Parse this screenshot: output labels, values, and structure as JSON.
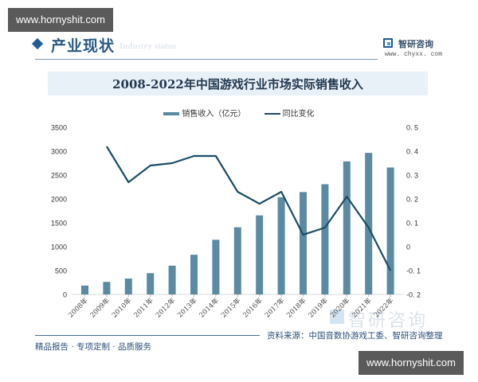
{
  "watermark": {
    "top": "www.hornyshit.com",
    "bottom": "www.hornyshit.com"
  },
  "section": {
    "title": "产业现状",
    "subtitle": "Industry status"
  },
  "brand": {
    "name": "智研咨询",
    "url": "www. chyxx. com",
    "ghost_name": "智研咨询"
  },
  "chart": {
    "title": "2008-2022年中国游戏行业市场实际销售收入",
    "legend": {
      "bar_label": "销售收入（亿元）",
      "line_label": "同比变化"
    }
  },
  "footer": {
    "source": "资料来源：中国音数协游戏工委、智研咨询整理",
    "slogan": "精品报告 · 专项定制 · 品质服务"
  },
  "colors": {
    "bar": "#5b8aa4",
    "line": "#1b4d66",
    "title_banner": "#e9f1f8",
    "accent": "#1f5d94"
  },
  "chart_data": {
    "type": "bar",
    "title": "2008-2022年中国游戏行业市场实际销售收入",
    "categories": [
      "2008年",
      "2009年",
      "2010年",
      "2011年",
      "2012年",
      "2013年",
      "2014年",
      "2015年",
      "2016年",
      "2017年",
      "2018年",
      "2019年",
      "2020年",
      "2021年",
      "2022年"
    ],
    "series": [
      {
        "name": "销售收入（亿元）",
        "type": "bar",
        "axis": "left",
        "values": [
          185.6,
          262.8,
          333.0,
          446.1,
          602.8,
          831.7,
          1144.8,
          1407.0,
          1655.7,
          2036.1,
          2144.4,
          2308.8,
          2786.9,
          2965.1,
          2658.8
        ]
      },
      {
        "name": "同比变化",
        "type": "line",
        "axis": "right",
        "values": [
          null,
          0.42,
          0.27,
          0.34,
          0.35,
          0.38,
          0.38,
          0.23,
          0.18,
          0.23,
          0.05,
          0.08,
          0.21,
          0.08,
          -0.1
        ]
      }
    ],
    "left_axis": {
      "ticks": [
        "0",
        "500",
        "1000",
        "1500",
        "2000",
        "2500",
        "3000",
        "3500"
      ],
      "range": [
        0,
        3500
      ]
    },
    "right_axis": {
      "ticks": [
        "-0.2",
        "-0.1",
        "0",
        "0.1",
        "0.2",
        "0.3",
        "0.4",
        "0.5"
      ],
      "range": [
        -0.2,
        0.5
      ]
    },
    "xlabel": "",
    "ylabel": "",
    "grid": false,
    "legend_position": "top"
  }
}
